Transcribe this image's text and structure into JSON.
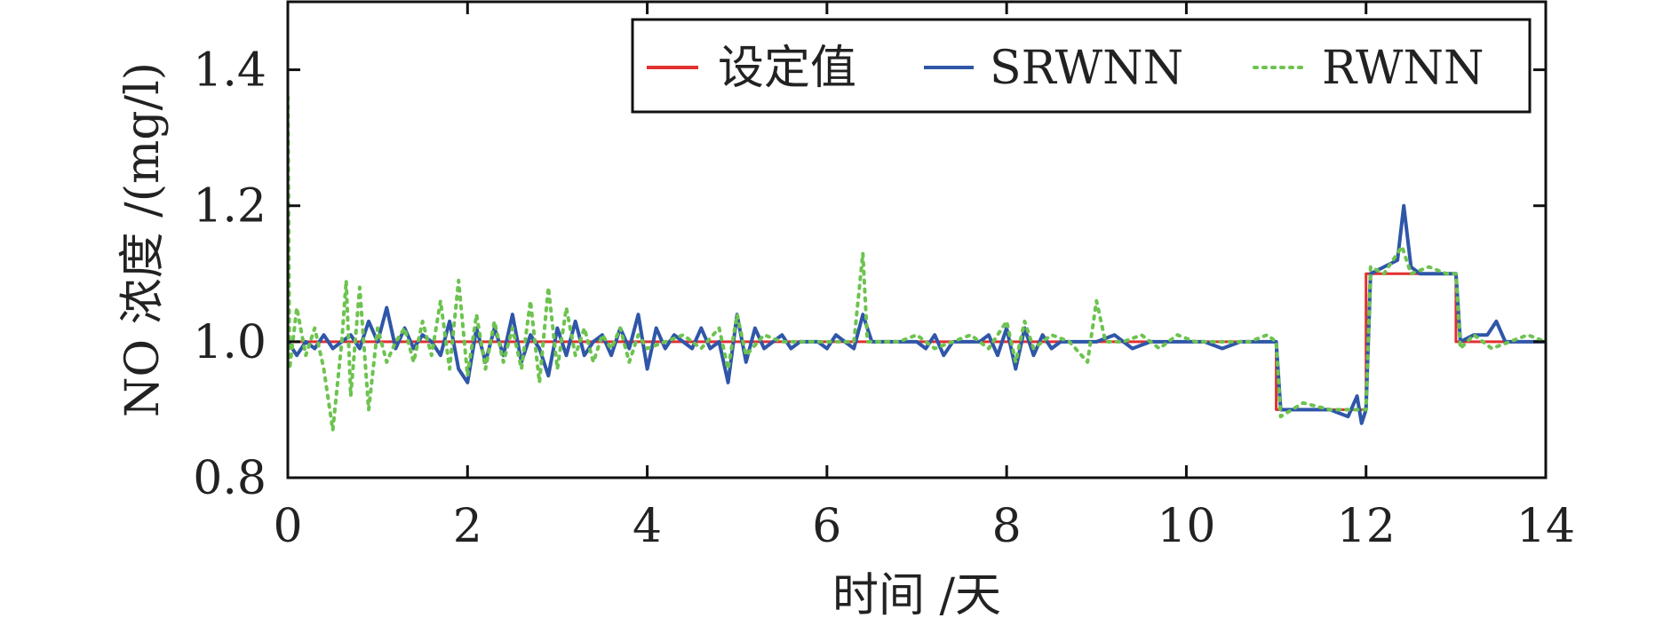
{
  "chart_data": {
    "type": "line",
    "title": "",
    "xlabel": "时间 /天",
    "ylabel": "NO 浓度 /(mg/l)",
    "xlim": [
      0,
      14
    ],
    "ylim": [
      0.8,
      1.5
    ],
    "xticks": [
      0,
      2,
      4,
      6,
      8,
      10,
      12,
      14
    ],
    "yticks": [
      0.8,
      1.0,
      1.2,
      1.4
    ],
    "xtick_labels": [
      "0",
      "2",
      "4",
      "6",
      "8",
      "10",
      "12",
      "14"
    ],
    "ytick_labels": [
      "0.8",
      "1.0",
      "1.2",
      "1.4"
    ],
    "grid": false,
    "legend_position": "top-right",
    "series": [
      {
        "name": "设定值",
        "color": "#e03030",
        "style": "solid",
        "points": [
          [
            0,
            1.0
          ],
          [
            11.0,
            1.0
          ],
          [
            11.0,
            0.9
          ],
          [
            12.0,
            0.9
          ],
          [
            12.0,
            1.1
          ],
          [
            13.0,
            1.1
          ],
          [
            13.0,
            1.0
          ],
          [
            14.0,
            1.0
          ]
        ]
      },
      {
        "name": "SRWNN",
        "color": "#2f56a8",
        "style": "solid",
        "points": [
          [
            0,
            1.0
          ],
          [
            0.1,
            0.98
          ],
          [
            0.2,
            1.0
          ],
          [
            0.3,
            0.99
          ],
          [
            0.4,
            1.01
          ],
          [
            0.5,
            0.99
          ],
          [
            0.6,
            1.0
          ],
          [
            0.7,
            1.01
          ],
          [
            0.8,
            0.99
          ],
          [
            0.9,
            1.03
          ],
          [
            1.0,
            1.0
          ],
          [
            1.1,
            1.05
          ],
          [
            1.2,
            0.99
          ],
          [
            1.3,
            1.02
          ],
          [
            1.4,
            0.99
          ],
          [
            1.5,
            1.01
          ],
          [
            1.6,
            1.0
          ],
          [
            1.7,
            0.98
          ],
          [
            1.8,
            1.03
          ],
          [
            1.9,
            0.96
          ],
          [
            2.0,
            0.94
          ],
          [
            2.1,
            1.02
          ],
          [
            2.2,
            0.97
          ],
          [
            2.3,
            1.02
          ],
          [
            2.4,
            0.98
          ],
          [
            2.5,
            1.04
          ],
          [
            2.6,
            0.97
          ],
          [
            2.7,
            1.01
          ],
          [
            2.8,
            0.99
          ],
          [
            2.9,
            0.95
          ],
          [
            3.0,
            1.02
          ],
          [
            3.1,
            0.98
          ],
          [
            3.2,
            1.03
          ],
          [
            3.3,
            0.98
          ],
          [
            3.4,
            1.0
          ],
          [
            3.5,
            1.01
          ],
          [
            3.6,
            0.98
          ],
          [
            3.7,
            1.02
          ],
          [
            3.8,
            0.99
          ],
          [
            3.9,
            1.04
          ],
          [
            4.0,
            0.96
          ],
          [
            4.1,
            1.02
          ],
          [
            4.2,
            0.99
          ],
          [
            4.3,
            1.01
          ],
          [
            4.4,
            1.0
          ],
          [
            4.5,
            0.99
          ],
          [
            4.6,
            1.02
          ],
          [
            4.7,
            0.99
          ],
          [
            4.8,
            1.0
          ],
          [
            4.9,
            0.94
          ],
          [
            5.0,
            1.04
          ],
          [
            5.1,
            0.97
          ],
          [
            5.2,
            1.02
          ],
          [
            5.3,
            0.99
          ],
          [
            5.4,
            1.0
          ],
          [
            5.5,
            1.01
          ],
          [
            5.6,
            0.99
          ],
          [
            5.7,
            1.0
          ],
          [
            5.8,
            1.0
          ],
          [
            5.9,
            1.0
          ],
          [
            6.0,
            0.99
          ],
          [
            6.1,
            1.01
          ],
          [
            6.2,
            1.0
          ],
          [
            6.3,
            0.99
          ],
          [
            6.4,
            1.04
          ],
          [
            6.5,
            1.0
          ],
          [
            6.6,
            1.0
          ],
          [
            6.8,
            1.0
          ],
          [
            7.0,
            1.0
          ],
          [
            7.1,
            0.99
          ],
          [
            7.2,
            1.01
          ],
          [
            7.3,
            0.98
          ],
          [
            7.4,
            1.0
          ],
          [
            7.5,
            1.0
          ],
          [
            7.7,
            1.0
          ],
          [
            7.8,
            1.01
          ],
          [
            7.9,
            0.98
          ],
          [
            8.0,
            1.02
          ],
          [
            8.1,
            0.96
          ],
          [
            8.2,
            1.02
          ],
          [
            8.3,
            0.98
          ],
          [
            8.4,
            1.01
          ],
          [
            8.5,
            0.99
          ],
          [
            8.6,
            1.0
          ],
          [
            8.8,
            1.0
          ],
          [
            9.0,
            1.0
          ],
          [
            9.2,
            1.01
          ],
          [
            9.4,
            0.99
          ],
          [
            9.6,
            1.0
          ],
          [
            9.8,
            1.0
          ],
          [
            10.0,
            1.0
          ],
          [
            10.2,
            1.0
          ],
          [
            10.4,
            0.99
          ],
          [
            10.6,
            1.0
          ],
          [
            10.8,
            1.0
          ],
          [
            10.95,
            1.0
          ],
          [
            11.0,
            1.0
          ],
          [
            11.05,
            0.9
          ],
          [
            11.3,
            0.9
          ],
          [
            11.6,
            0.9
          ],
          [
            11.8,
            0.89
          ],
          [
            11.9,
            0.92
          ],
          [
            11.95,
            0.88
          ],
          [
            12.0,
            0.9
          ],
          [
            12.05,
            1.1
          ],
          [
            12.2,
            1.11
          ],
          [
            12.35,
            1.12
          ],
          [
            12.42,
            1.2
          ],
          [
            12.5,
            1.11
          ],
          [
            12.6,
            1.1
          ],
          [
            12.8,
            1.1
          ],
          [
            13.0,
            1.1
          ],
          [
            13.05,
            1.0
          ],
          [
            13.2,
            1.01
          ],
          [
            13.35,
            1.01
          ],
          [
            13.45,
            1.03
          ],
          [
            13.55,
            1.0
          ],
          [
            13.7,
            1.0
          ],
          [
            14.0,
            1.0
          ]
        ]
      },
      {
        "name": "RWNN",
        "color": "#6dc34f",
        "style": "dotted",
        "points": [
          [
            0,
            1.36
          ],
          [
            0.02,
            0.96
          ],
          [
            0.1,
            1.05
          ],
          [
            0.2,
            0.98
          ],
          [
            0.3,
            1.02
          ],
          [
            0.4,
            0.96
          ],
          [
            0.5,
            0.87
          ],
          [
            0.6,
            1.0
          ],
          [
            0.65,
            1.09
          ],
          [
            0.7,
            0.92
          ],
          [
            0.8,
            1.08
          ],
          [
            0.9,
            0.9
          ],
          [
            1.0,
            1.02
          ],
          [
            1.1,
            0.97
          ],
          [
            1.2,
            1.0
          ],
          [
            1.3,
            1.02
          ],
          [
            1.4,
            0.97
          ],
          [
            1.5,
            1.03
          ],
          [
            1.6,
            0.98
          ],
          [
            1.7,
            1.06
          ],
          [
            1.8,
            0.96
          ],
          [
            1.9,
            1.09
          ],
          [
            2.0,
            0.95
          ],
          [
            2.1,
            1.04
          ],
          [
            2.2,
            0.96
          ],
          [
            2.3,
            1.03
          ],
          [
            2.4,
            0.97
          ],
          [
            2.5,
            1.02
          ],
          [
            2.6,
            0.96
          ],
          [
            2.7,
            1.06
          ],
          [
            2.8,
            0.94
          ],
          [
            2.9,
            1.08
          ],
          [
            3.0,
            0.96
          ],
          [
            3.1,
            1.05
          ],
          [
            3.2,
            0.98
          ],
          [
            3.3,
            1.02
          ],
          [
            3.4,
            0.97
          ],
          [
            3.5,
            1.01
          ],
          [
            3.6,
            0.99
          ],
          [
            3.7,
            1.02
          ],
          [
            3.8,
            0.97
          ],
          [
            3.9,
            1.01
          ],
          [
            4.0,
            0.99
          ],
          [
            4.2,
            1.0
          ],
          [
            4.4,
            1.01
          ],
          [
            4.6,
            0.99
          ],
          [
            4.8,
            1.02
          ],
          [
            4.9,
            0.96
          ],
          [
            5.0,
            1.04
          ],
          [
            5.1,
            0.98
          ],
          [
            5.3,
            1.01
          ],
          [
            5.5,
            1.0
          ],
          [
            5.7,
            1.0
          ],
          [
            5.9,
            1.0
          ],
          [
            6.1,
            1.0
          ],
          [
            6.3,
            1.0
          ],
          [
            6.4,
            1.13
          ],
          [
            6.45,
            1.0
          ],
          [
            6.6,
            1.0
          ],
          [
            6.8,
            1.0
          ],
          [
            7.0,
            1.01
          ],
          [
            7.2,
            0.99
          ],
          [
            7.4,
            1.0
          ],
          [
            7.6,
            1.01
          ],
          [
            7.8,
            0.99
          ],
          [
            8.0,
            1.03
          ],
          [
            8.1,
            0.97
          ],
          [
            8.2,
            1.03
          ],
          [
            8.3,
            0.99
          ],
          [
            8.5,
            1.01
          ],
          [
            8.7,
            1.0
          ],
          [
            8.9,
            0.97
          ],
          [
            9.0,
            1.06
          ],
          [
            9.1,
            1.0
          ],
          [
            9.3,
            1.0
          ],
          [
            9.5,
            1.01
          ],
          [
            9.7,
            0.99
          ],
          [
            9.9,
            1.01
          ],
          [
            10.1,
            1.0
          ],
          [
            10.3,
            1.0
          ],
          [
            10.5,
            1.0
          ],
          [
            10.7,
            1.0
          ],
          [
            10.9,
            1.01
          ],
          [
            11.0,
            1.0
          ],
          [
            11.05,
            0.89
          ],
          [
            11.3,
            0.91
          ],
          [
            11.6,
            0.9
          ],
          [
            11.9,
            0.9
          ],
          [
            12.0,
            0.9
          ],
          [
            12.05,
            1.11
          ],
          [
            12.2,
            1.1
          ],
          [
            12.4,
            1.14
          ],
          [
            12.5,
            1.1
          ],
          [
            12.7,
            1.11
          ],
          [
            12.9,
            1.1
          ],
          [
            13.0,
            1.1
          ],
          [
            13.05,
            0.99
          ],
          [
            13.2,
            1.01
          ],
          [
            13.4,
            0.99
          ],
          [
            13.6,
            1.0
          ],
          [
            13.8,
            1.01
          ],
          [
            14.0,
            1.0
          ]
        ]
      }
    ]
  }
}
